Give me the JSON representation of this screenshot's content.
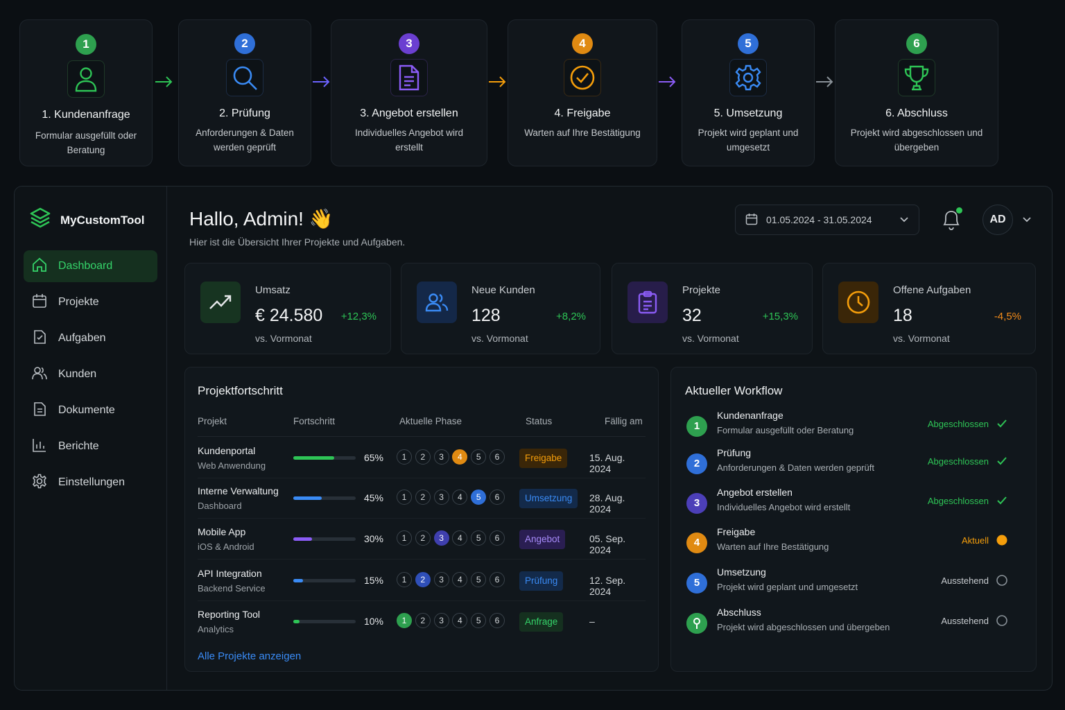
{
  "process": {
    "steps": [
      {
        "num": "1",
        "title": "1. Kundenanfrage",
        "desc": "Formular ausgefüllt oder Beratung",
        "icon": "user-icon",
        "color": "#2ea04f"
      },
      {
        "num": "2",
        "title": "2. Prüfung",
        "desc": "Anforderungen & Daten werden geprüft",
        "icon": "magnifier-icon",
        "color": "#2f6fd8"
      },
      {
        "num": "3",
        "title": "3. Angebot erstellen",
        "desc": "Individuelles Angebot wird erstellt",
        "icon": "document-icon",
        "color": "#6b3fd1"
      },
      {
        "num": "4",
        "title": "4. Freigabe",
        "desc": "Warten auf Ihre Bestätigung",
        "icon": "check-circle-icon",
        "color": "#e08a12"
      },
      {
        "num": "5",
        "title": "5. Umsetzung",
        "desc": "Projekt wird geplant und umgesetzt",
        "icon": "gear-icon",
        "color": "#2f6fd8"
      },
      {
        "num": "6",
        "title": "6. Abschluss",
        "desc": "Projekt wird abgeschlossen und übergeben",
        "icon": "trophy-icon",
        "color": "#2ea04f"
      }
    ]
  },
  "sidebar": {
    "brand": "MyCustomTool",
    "items": [
      {
        "label": "Dashboard",
        "icon": "home-icon"
      },
      {
        "label": "Projekte",
        "icon": "calendar-icon"
      },
      {
        "label": "Aufgaben",
        "icon": "tasks-icon"
      },
      {
        "label": "Kunden",
        "icon": "users-icon"
      },
      {
        "label": "Dokumente",
        "icon": "document-icon"
      },
      {
        "label": "Berichte",
        "icon": "chart-icon"
      },
      {
        "label": "Einstellungen",
        "icon": "gear-icon"
      }
    ]
  },
  "header": {
    "greeting": "Hallo, Admin! 👋",
    "subtitle": "Hier ist die Übersicht Ihrer Projekte und Aufgaben.",
    "date_range": "01.05.2024 - 31.05.2024",
    "avatar": "AD"
  },
  "kpis": [
    {
      "label": "Umsatz",
      "value": "€ 24.580",
      "delta": "+12,3%",
      "sub": "vs. Vormonat",
      "icon": "trend-up-icon",
      "color": "#2ec556",
      "bg": "#173421"
    },
    {
      "label": "Neue Kunden",
      "value": "128",
      "delta": "+8,2%",
      "sub": "vs. Vormonat",
      "icon": "users-icon",
      "color": "#3a8bf5",
      "bg": "#142848"
    },
    {
      "label": "Projekte",
      "value": "32",
      "delta": "+15,3%",
      "sub": "vs. Vormonat",
      "icon": "clipboard-icon",
      "color": "#8b5cf6",
      "bg": "#271d4a"
    },
    {
      "label": "Offene Aufgaben",
      "value": "18",
      "delta": "-4,5%",
      "sub": "vs. Vormonat",
      "icon": "clock-icon",
      "color": "#f59e0b",
      "bg": "#3a2608"
    }
  ],
  "projects": {
    "title": "Projektfortschritt",
    "columns": [
      "Projekt",
      "Fortschritt",
      "Aktuelle Phase",
      "Status",
      "Fällig am"
    ],
    "phase_labels": [
      "1",
      "2",
      "3",
      "4",
      "5",
      "6"
    ],
    "rows": [
      {
        "name": "Kundenportal",
        "sub": "Web Anwendung",
        "progress": 0.65,
        "pct": "65%",
        "phase": 4,
        "status": "Freigabe",
        "due": "15. Aug. 2024",
        "color": "#2ec556",
        "phase_color": "#e08a12",
        "badge_fg": "#f59e0b",
        "badge_bg": "#3a2608"
      },
      {
        "name": "Interne Verwaltung",
        "sub": "Dashboard",
        "progress": 0.45,
        "pct": "45%",
        "phase": 5,
        "status": "Umsetzung",
        "due": "28. Aug. 2024",
        "color": "#3a8bf5",
        "phase_color": "#2f6fd8",
        "badge_fg": "#3a8bf5",
        "badge_bg": "#132a4a"
      },
      {
        "name": "Mobile App",
        "sub": "iOS & Android",
        "progress": 0.3,
        "pct": "30%",
        "phase": 3,
        "status": "Angebot",
        "due": "05. Sep. 2024",
        "color": "#8b5cf6",
        "phase_color": "#3f3fae",
        "badge_fg": "#a78bfa",
        "badge_bg": "#2a1e52"
      },
      {
        "name": "API Integration",
        "sub": "Backend Service",
        "progress": 0.15,
        "pct": "15%",
        "phase": 2,
        "status": "Prüfung",
        "due": "12. Sep. 2024",
        "color": "#3a8bf5",
        "phase_color": "#2f4fb8",
        "badge_fg": "#3a8bf5",
        "badge_bg": "#132a4a"
      },
      {
        "name": "Reporting Tool",
        "sub": "Analytics",
        "progress": 0.1,
        "pct": "10%",
        "phase": 1,
        "status": "Anfrage",
        "due": "–",
        "color": "#2ec556",
        "phase_color": "#2ea04f",
        "badge_fg": "#35d46a",
        "badge_bg": "#15301f"
      }
    ],
    "link": "Alle Projekte anzeigen"
  },
  "workflow": {
    "title": "Aktueller Workflow",
    "items": [
      {
        "num": "1",
        "title": "Kundenanfrage",
        "desc": "Formular ausgefüllt oder Beratung",
        "status": "Abgeschlossen",
        "state": "done",
        "color": "#2ea04f"
      },
      {
        "num": "2",
        "title": "Prüfung",
        "desc": "Anforderungen & Daten werden geprüft",
        "status": "Abgeschlossen",
        "state": "done",
        "color": "#2f6fd8"
      },
      {
        "num": "3",
        "title": "Angebot erstellen",
        "desc": "Individuelles Angebot wird erstellt",
        "status": "Abgeschlossen",
        "state": "done",
        "color": "#4c3fb8"
      },
      {
        "num": "4",
        "title": "Freigabe",
        "desc": "Warten auf Ihre Bestätigung",
        "status": "Aktuell",
        "state": "current",
        "color": "#e08a12"
      },
      {
        "num": "5",
        "title": "Umsetzung",
        "desc": "Projekt wird geplant und umgesetzt",
        "status": "Ausstehend",
        "state": "pending",
        "color": "#2f6fd8"
      },
      {
        "num": "",
        "title": "Abschluss",
        "desc": "Projekt wird abgeschlossen und übergeben",
        "status": "Ausstehend",
        "state": "pending",
        "color": "#2ea04f"
      }
    ]
  }
}
